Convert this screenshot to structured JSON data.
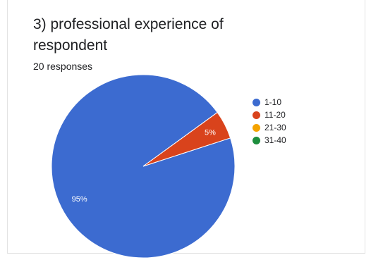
{
  "header": {
    "title": "3) professional experience of respondent",
    "responses": "20 responses"
  },
  "chart_data": {
    "type": "pie",
    "categories": [
      "1-10",
      "11-20",
      "21-30",
      "31-40"
    ],
    "values": [
      95,
      5,
      0,
      0
    ],
    "labels": [
      "95%",
      "5%",
      "",
      ""
    ],
    "colors": [
      "#3c6bd0",
      "#d9431c",
      "#f4a300",
      "#1e8e3e"
    ],
    "legend_position": "right"
  }
}
